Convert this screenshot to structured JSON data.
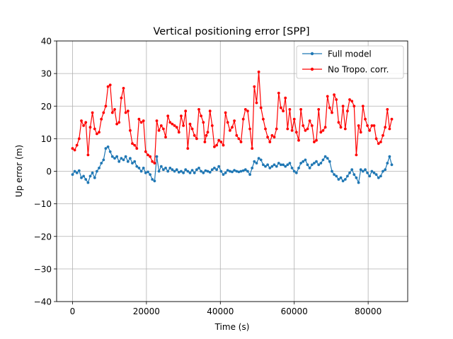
{
  "chart_data": {
    "type": "line",
    "title": "Vertical positioning error [SPP]",
    "xlabel": "Time (s)",
    "ylabel": "Up error (m)",
    "xlim": [
      -4300,
      90700
    ],
    "ylim": [
      -40,
      40
    ],
    "xticks": [
      0,
      20000,
      40000,
      60000,
      80000
    ],
    "xtick_labels": [
      "0",
      "20000",
      "40000",
      "60000",
      "80000"
    ],
    "yticks": [
      -40,
      -30,
      -20,
      -10,
      0,
      10,
      20,
      30,
      40
    ],
    "ytick_labels": [
      "−40",
      "−30",
      "−20",
      "−10",
      "0",
      "10",
      "20",
      "30",
      "40"
    ],
    "grid": true,
    "legend_position": "upper-right",
    "series": [
      {
        "name": "Full model",
        "color": "#1f77b4",
        "points": [
          [
            0,
            -1
          ],
          [
            600,
            0
          ],
          [
            1200,
            -0.5
          ],
          [
            1800,
            0.2
          ],
          [
            2400,
            -2
          ],
          [
            3000,
            -1.5
          ],
          [
            3600,
            -2.5
          ],
          [
            4200,
            -3.5
          ],
          [
            4800,
            -1.5
          ],
          [
            5400,
            -0.5
          ],
          [
            6000,
            -2
          ],
          [
            6600,
            0
          ],
          [
            7200,
            1
          ],
          [
            7800,
            2.5
          ],
          [
            8400,
            3.5
          ],
          [
            9000,
            7
          ],
          [
            9600,
            7.5
          ],
          [
            10200,
            6
          ],
          [
            10800,
            4.5
          ],
          [
            11400,
            4
          ],
          [
            12000,
            4.5
          ],
          [
            12600,
            3
          ],
          [
            13200,
            4
          ],
          [
            13800,
            3.5
          ],
          [
            14400,
            4.5
          ],
          [
            15000,
            3
          ],
          [
            15600,
            4
          ],
          [
            16200,
            2.5
          ],
          [
            16800,
            3
          ],
          [
            17400,
            1.5
          ],
          [
            18000,
            1
          ],
          [
            18600,
            0
          ],
          [
            19200,
            1
          ],
          [
            19800,
            -0.5
          ],
          [
            20400,
            -0.2
          ],
          [
            21000,
            -1
          ],
          [
            21600,
            -2.5
          ],
          [
            22200,
            -3
          ],
          [
            22800,
            4.5
          ],
          [
            23400,
            0
          ],
          [
            24000,
            1.5
          ],
          [
            24600,
            0.5
          ],
          [
            25200,
            1
          ],
          [
            25800,
            0
          ],
          [
            26400,
            1
          ],
          [
            27000,
            0.5
          ],
          [
            27600,
            0
          ],
          [
            28200,
            0.5
          ],
          [
            28800,
            -0.3
          ],
          [
            29400,
            0
          ],
          [
            30000,
            -0.5
          ],
          [
            30600,
            0.5
          ],
          [
            31200,
            0
          ],
          [
            31800,
            -0.5
          ],
          [
            32400,
            0.3
          ],
          [
            33000,
            -0.5
          ],
          [
            33600,
            0.5
          ],
          [
            34200,
            1
          ],
          [
            34800,
            0
          ],
          [
            35400,
            -0.5
          ],
          [
            36000,
            0.2
          ],
          [
            36600,
            0
          ],
          [
            37200,
            -0.3
          ],
          [
            37800,
            0.5
          ],
          [
            38400,
            1
          ],
          [
            39000,
            0.5
          ],
          [
            39600,
            1.5
          ],
          [
            40200,
            0
          ],
          [
            40800,
            -1
          ],
          [
            41400,
            -0.5
          ],
          [
            42000,
            0.3
          ],
          [
            42600,
            0
          ],
          [
            43200,
            -0.2
          ],
          [
            43800,
            0.3
          ],
          [
            44400,
            0
          ],
          [
            45000,
            -0.2
          ],
          [
            45600,
            0
          ],
          [
            46200,
            0.2
          ],
          [
            46800,
            0.5
          ],
          [
            47400,
            0
          ],
          [
            48000,
            -1
          ],
          [
            48600,
            1
          ],
          [
            49200,
            3
          ],
          [
            49800,
            2.5
          ],
          [
            50400,
            4
          ],
          [
            51000,
            3.5
          ],
          [
            51600,
            2
          ],
          [
            52200,
            1.5
          ],
          [
            52800,
            2
          ],
          [
            53400,
            1
          ],
          [
            54000,
            1.5
          ],
          [
            54600,
            2
          ],
          [
            55200,
            1.5
          ],
          [
            55800,
            2.5
          ],
          [
            56400,
            2
          ],
          [
            57000,
            2
          ],
          [
            57600,
            1.5
          ],
          [
            58200,
            2
          ],
          [
            58800,
            2.5
          ],
          [
            59400,
            1
          ],
          [
            60000,
            0
          ],
          [
            60600,
            -0.5
          ],
          [
            61200,
            1
          ],
          [
            61800,
            2.5
          ],
          [
            62400,
            3
          ],
          [
            63000,
            3.5
          ],
          [
            63600,
            2
          ],
          [
            64200,
            1
          ],
          [
            64800,
            2
          ],
          [
            65400,
            2.5
          ],
          [
            66000,
            3
          ],
          [
            66600,
            2
          ],
          [
            67200,
            2.5
          ],
          [
            67800,
            3.5
          ],
          [
            68400,
            4.5
          ],
          [
            69000,
            4
          ],
          [
            69600,
            3
          ],
          [
            70200,
            0
          ],
          [
            70800,
            -1
          ],
          [
            71400,
            -1.5
          ],
          [
            72000,
            -2.5
          ],
          [
            72600,
            -2
          ],
          [
            73200,
            -3
          ],
          [
            73800,
            -2.5
          ],
          [
            74400,
            -1.5
          ],
          [
            75000,
            -0.5
          ],
          [
            75600,
            0.5
          ],
          [
            76200,
            -1
          ],
          [
            76800,
            -2
          ],
          [
            77400,
            -3.5
          ],
          [
            78000,
            0.5
          ],
          [
            78600,
            0
          ],
          [
            79200,
            0.5
          ],
          [
            79800,
            -0.5
          ],
          [
            80400,
            -1.5
          ],
          [
            81000,
            0
          ],
          [
            81600,
            -0.5
          ],
          [
            82200,
            -1
          ],
          [
            82800,
            -2
          ],
          [
            83400,
            -1.5
          ],
          [
            84000,
            0
          ],
          [
            84600,
            0.5
          ],
          [
            85200,
            2.5
          ],
          [
            85800,
            4.5
          ],
          [
            86400,
            2
          ]
        ]
      },
      {
        "name": "No Tropo. corr.",
        "color": "#ff0000",
        "points": [
          [
            0,
            7
          ],
          [
            600,
            6.5
          ],
          [
            1200,
            8
          ],
          [
            1800,
            10
          ],
          [
            2400,
            15.5
          ],
          [
            3000,
            14
          ],
          [
            3600,
            15
          ],
          [
            4200,
            5
          ],
          [
            4800,
            13.5
          ],
          [
            5400,
            18
          ],
          [
            6000,
            13
          ],
          [
            6600,
            11.5
          ],
          [
            7200,
            12
          ],
          [
            7800,
            16
          ],
          [
            8400,
            18
          ],
          [
            9000,
            20
          ],
          [
            9600,
            26
          ],
          [
            10200,
            26.5
          ],
          [
            10800,
            18
          ],
          [
            11400,
            19
          ],
          [
            12000,
            14.5
          ],
          [
            12600,
            15
          ],
          [
            13200,
            22.5
          ],
          [
            13800,
            25.5
          ],
          [
            14400,
            18
          ],
          [
            15000,
            18.5
          ],
          [
            15600,
            12.5
          ],
          [
            16200,
            8.5
          ],
          [
            16800,
            8
          ],
          [
            17400,
            7
          ],
          [
            18000,
            16
          ],
          [
            18600,
            15
          ],
          [
            19200,
            15.5
          ],
          [
            19800,
            6
          ],
          [
            20400,
            5
          ],
          [
            21000,
            4.5
          ],
          [
            21600,
            3
          ],
          [
            22200,
            2.5
          ],
          [
            22800,
            15.5
          ],
          [
            23400,
            12.5
          ],
          [
            24000,
            14
          ],
          [
            24600,
            13
          ],
          [
            25200,
            10.5
          ],
          [
            25800,
            17
          ],
          [
            26400,
            15
          ],
          [
            27000,
            14.5
          ],
          [
            27600,
            14
          ],
          [
            28200,
            13.5
          ],
          [
            28800,
            12
          ],
          [
            29400,
            17
          ],
          [
            30000,
            14
          ],
          [
            30600,
            18.5
          ],
          [
            31200,
            7
          ],
          [
            31800,
            14.5
          ],
          [
            32400,
            13
          ],
          [
            33000,
            11
          ],
          [
            33600,
            10
          ],
          [
            34200,
            19
          ],
          [
            34800,
            17
          ],
          [
            35400,
            15
          ],
          [
            35800,
            9
          ],
          [
            36200,
            11
          ],
          [
            36600,
            12
          ],
          [
            37200,
            18.5
          ],
          [
            37800,
            14
          ],
          [
            38400,
            7.5
          ],
          [
            39000,
            8
          ],
          [
            39600,
            9.5
          ],
          [
            40200,
            9
          ],
          [
            40800,
            8
          ],
          [
            41400,
            18
          ],
          [
            42000,
            15
          ],
          [
            42600,
            12.5
          ],
          [
            43200,
            13.5
          ],
          [
            43800,
            15.5
          ],
          [
            44400,
            11
          ],
          [
            45000,
            10
          ],
          [
            45600,
            9
          ],
          [
            46200,
            16
          ],
          [
            46800,
            19
          ],
          [
            47400,
            18.5
          ],
          [
            48000,
            13
          ],
          [
            48600,
            7
          ],
          [
            49200,
            26
          ],
          [
            49800,
            21
          ],
          [
            50400,
            30.5
          ],
          [
            51000,
            19.5
          ],
          [
            51600,
            16
          ],
          [
            52200,
            13
          ],
          [
            52800,
            10.5
          ],
          [
            53400,
            9
          ],
          [
            54000,
            11
          ],
          [
            54600,
            10.5
          ],
          [
            55200,
            13
          ],
          [
            55800,
            24
          ],
          [
            56400,
            19.5
          ],
          [
            57000,
            18.5
          ],
          [
            57600,
            22.5
          ],
          [
            58200,
            13
          ],
          [
            58800,
            19
          ],
          [
            59400,
            12.5
          ],
          [
            60000,
            16
          ],
          [
            60600,
            12
          ],
          [
            61200,
            9.5
          ],
          [
            61800,
            19
          ],
          [
            62400,
            14
          ],
          [
            63000,
            12.5
          ],
          [
            63600,
            13
          ],
          [
            64200,
            15.5
          ],
          [
            64800,
            14
          ],
          [
            65400,
            9
          ],
          [
            66000,
            9.5
          ],
          [
            66600,
            19
          ],
          [
            67200,
            12
          ],
          [
            67800,
            12.5
          ],
          [
            68400,
            13.5
          ],
          [
            69000,
            23
          ],
          [
            69600,
            19.5
          ],
          [
            70200,
            18
          ],
          [
            70800,
            23.5
          ],
          [
            71400,
            22
          ],
          [
            72000,
            15
          ],
          [
            72600,
            13.5
          ],
          [
            73200,
            20
          ],
          [
            73800,
            13
          ],
          [
            74400,
            18.5
          ],
          [
            75000,
            22
          ],
          [
            75600,
            21.5
          ],
          [
            76200,
            20
          ],
          [
            76800,
            5
          ],
          [
            77400,
            14
          ],
          [
            78000,
            12
          ],
          [
            78600,
            20
          ],
          [
            79200,
            16
          ],
          [
            79800,
            14
          ],
          [
            80400,
            12.5
          ],
          [
            81000,
            14
          ],
          [
            81600,
            14
          ],
          [
            82200,
            10
          ],
          [
            82800,
            8.5
          ],
          [
            83400,
            9
          ],
          [
            84000,
            11
          ],
          [
            84600,
            13.5
          ],
          [
            85200,
            19
          ],
          [
            85800,
            13
          ],
          [
            86400,
            16
          ]
        ]
      }
    ]
  }
}
